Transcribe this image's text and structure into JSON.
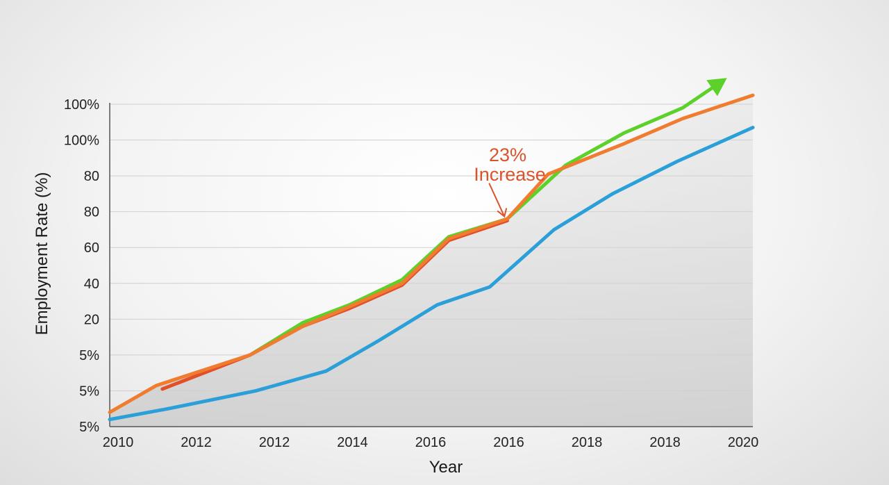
{
  "chart_data": {
    "type": "line",
    "title": "",
    "xlabel": "Year",
    "ylabel": "Employment Rate (%)",
    "x_tick_labels": [
      "2010",
      "2012",
      "2012",
      "2014",
      "2016",
      "2016",
      "2018",
      "2018",
      "2020"
    ],
    "y_tick_labels": [
      "5%",
      "5%",
      "5%",
      "20",
      "40",
      "60",
      "80",
      "80",
      "100%",
      "100%"
    ],
    "ylim": [
      0,
      9
    ],
    "x": [
      0,
      1,
      2,
      3,
      4,
      5,
      6,
      7,
      8,
      9,
      10,
      11
    ],
    "series": [
      {
        "name": "green",
        "color": "#5bd12a",
        "x": [
          2.4,
          3.3,
          4.1,
          5.0,
          5.8,
          6.8,
          7.8,
          8.8,
          9.8,
          10.3
        ],
        "values": [
          2.0,
          2.9,
          3.4,
          4.1,
          5.3,
          5.8,
          7.3,
          8.2,
          8.9,
          9.45
        ]
      },
      {
        "name": "red",
        "color": "#e2502a",
        "x": [
          0.9,
          2.4,
          3.3,
          4.1,
          5.0,
          5.8,
          6.8
        ],
        "values": [
          1.05,
          2.0,
          2.8,
          3.3,
          3.95,
          5.2,
          5.75
        ]
      },
      {
        "name": "orange",
        "color": "#f07c30",
        "x": [
          0,
          0.8,
          2.4,
          3.3,
          4.1,
          5.0,
          5.8,
          6.8,
          7.5,
          8.8,
          9.8,
          11
        ],
        "values": [
          0.4,
          1.15,
          2.0,
          2.8,
          3.35,
          4.0,
          5.25,
          5.8,
          7.05,
          7.9,
          8.6,
          9.25
        ]
      },
      {
        "name": "blue",
        "color": "#2a9fd8",
        "x": [
          0,
          1,
          2.5,
          3.7,
          4.6,
          5.6,
          6.5,
          7.6,
          8.6,
          9.7,
          11
        ],
        "values": [
          0.2,
          0.5,
          1.0,
          1.55,
          2.4,
          3.4,
          3.9,
          5.5,
          6.5,
          7.4,
          8.35
        ]
      }
    ],
    "annotations": [
      {
        "text_line1": "23%",
        "text_line2": "Increase",
        "color": "#d9542a",
        "x": 6.75,
        "y": 5.75
      }
    ],
    "grid": true
  }
}
